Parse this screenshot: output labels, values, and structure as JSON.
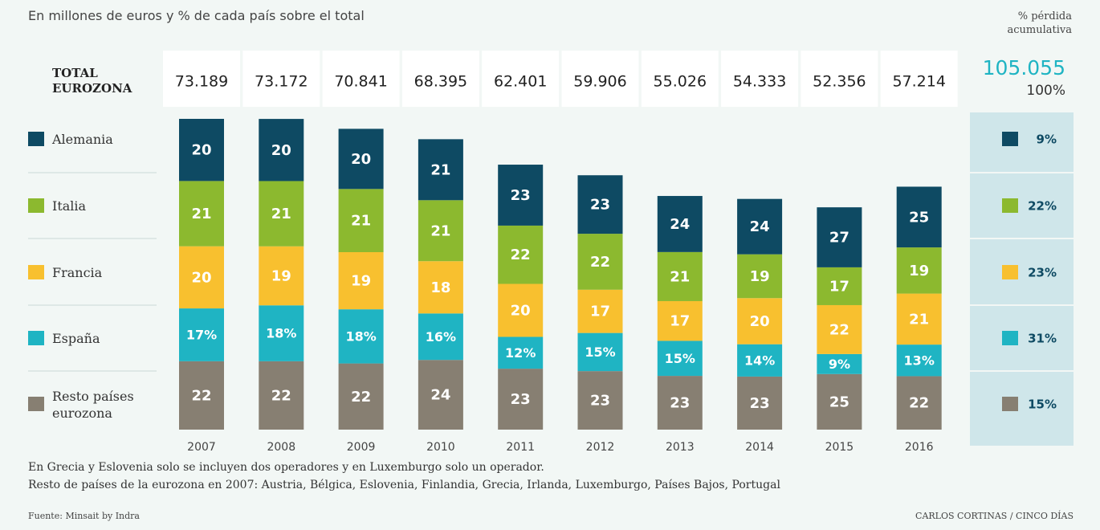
{
  "subtitle": "En millones de euros y % de cada país sobre el total",
  "total_label": "TOTAL EUROZONA",
  "loss_header": "% pérdida acumulativa",
  "chart_data": {
    "type": "stacked_bar",
    "categories": [
      "2007",
      "2008",
      "2009",
      "2010",
      "2011",
      "2012",
      "2013",
      "2014",
      "2015",
      "2016"
    ],
    "totals": {
      "values": [
        73189,
        73172,
        70841,
        68395,
        62401,
        59906,
        55026,
        54333,
        52356,
        57214
      ],
      "value_labels": [
        "73.189",
        "73.172",
        "70.841",
        "68.395",
        "62.401",
        "59.906",
        "55.026",
        "54.333",
        "52.356",
        "57.214"
      ]
    },
    "series": [
      {
        "name": "Alemania",
        "color": "#0e4a63",
        "values": [
          20,
          20,
          20,
          21,
          23,
          23,
          24,
          24,
          27,
          25
        ]
      },
      {
        "name": "Italia",
        "color": "#8cb92f",
        "values": [
          21,
          21,
          21,
          21,
          22,
          22,
          21,
          19,
          17,
          19
        ]
      },
      {
        "name": "Francia",
        "color": "#f8c02f",
        "values": [
          20,
          19,
          19,
          18,
          20,
          17,
          17,
          20,
          22,
          21
        ]
      },
      {
        "name": "España",
        "color": "#1fb4c3",
        "values": [
          17,
          18,
          18,
          16,
          12,
          15,
          15,
          14,
          9,
          13
        ],
        "value_labels": [
          "17%",
          "18%",
          "18%",
          "16%",
          "12%",
          "15%",
          "15%",
          "14%",
          "9%",
          "13%"
        ]
      },
      {
        "name": "Resto países eurozona",
        "color": "#877f72",
        "values": [
          22,
          22,
          22,
          24,
          23,
          23,
          23,
          23,
          25,
          22
        ]
      }
    ],
    "cumulative_loss": {
      "total": 105055,
      "total_label": "105.055",
      "total_percent": 100,
      "total_percent_label": "100%",
      "values": [
        9,
        22,
        23,
        31,
        15
      ],
      "value_labels": [
        "9%",
        "22%",
        "23%",
        "31%",
        "15%"
      ]
    }
  },
  "notes": [
    "En Grecia y Eslovenia solo se incluyen dos operadores y en Luxemburgo solo un operador.",
    "Resto de países de la eurozona en 2007: Austria, Bélgica, Eslovenia, Finlandia, Grecia, Irlanda, Luxemburgo, Países Bajos, Portugal"
  ],
  "source": "Fuente: Minsait by Indra",
  "credit": "CARLOS CORTINAS / CINCO DÍAS"
}
